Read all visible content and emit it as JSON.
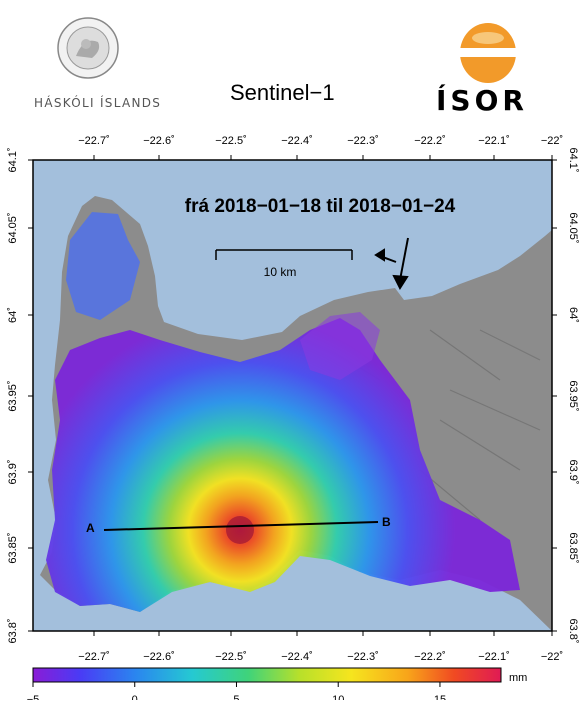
{
  "header": {
    "institution_left": "HÁSKÓLI ÍSLANDS",
    "title": "Sentinel−1",
    "institution_right": "ÍSOR"
  },
  "map": {
    "annotation": "frá 2018−01−18 til 2018−01−24",
    "scalebar_label": "10 km",
    "profile_start": "A",
    "profile_end": "B",
    "lon_ticks": [
      "−22.7˚",
      "−22.6˚",
      "−22.5˚",
      "−22.4˚",
      "−22.3˚",
      "−22.2˚",
      "−22.1˚",
      "−22˚"
    ],
    "lat_ticks": [
      "64.1˚",
      "64.05˚",
      "64˚",
      "63.95˚",
      "63.9˚",
      "63.85˚",
      "63.8˚"
    ],
    "colors": {
      "sea": "#a3bfdc",
      "land": "#8c8c8c"
    }
  },
  "colorbar": {
    "unit": "mm",
    "range": [
      -5,
      18
    ],
    "tick_values": [
      "−5",
      "0",
      "5",
      "10",
      "15"
    ],
    "colors": [
      "#8a1cd6",
      "#4a3bf5",
      "#2a86ef",
      "#25c9d2",
      "#3fd37a",
      "#b8e02a",
      "#f6e51e",
      "#f8a51a",
      "#f04a22",
      "#e01a55"
    ]
  }
}
